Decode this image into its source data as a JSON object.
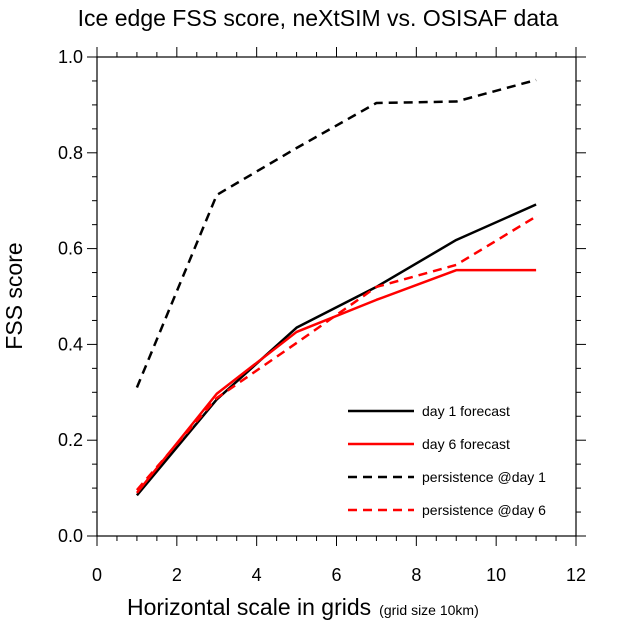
{
  "chart_data": {
    "type": "line",
    "title": "Ice edge FSS score, neXtSIM vs. OSISAF data",
    "xlabel": "Horizontal scale in grids",
    "xlabel_sub": "(grid size 10km)",
    "ylabel": "FSS score",
    "xlim": [
      0,
      12
    ],
    "ylim": [
      0,
      1
    ],
    "xticks": [
      "0",
      "2",
      "4",
      "6",
      "8",
      "10",
      "12"
    ],
    "yticks": [
      "0.0",
      "0.2",
      "0.4",
      "0.6",
      "0.8",
      "1.0"
    ],
    "grid": false,
    "legend_position": "bottom-right",
    "x": [
      1,
      3,
      5,
      7,
      9,
      11
    ],
    "series": [
      {
        "name": "day 1 forecast",
        "values": [
          0.085,
          0.285,
          0.435,
          0.52,
          0.618,
          0.692
        ],
        "color": "#000000",
        "dash": false
      },
      {
        "name": "day 6 forecast",
        "values": [
          0.09,
          0.297,
          0.426,
          0.493,
          0.555,
          0.555
        ],
        "color": "#ff0000",
        "dash": false
      },
      {
        "name": "persistence @day 1",
        "values": [
          0.31,
          0.712,
          0.81,
          0.904,
          0.907,
          0.952
        ],
        "color": "#000000",
        "dash": true
      },
      {
        "name": "persistence @day 6",
        "values": [
          0.096,
          0.288,
          0.403,
          0.52,
          0.566,
          0.667
        ],
        "color": "#ff0000",
        "dash": true
      }
    ]
  }
}
